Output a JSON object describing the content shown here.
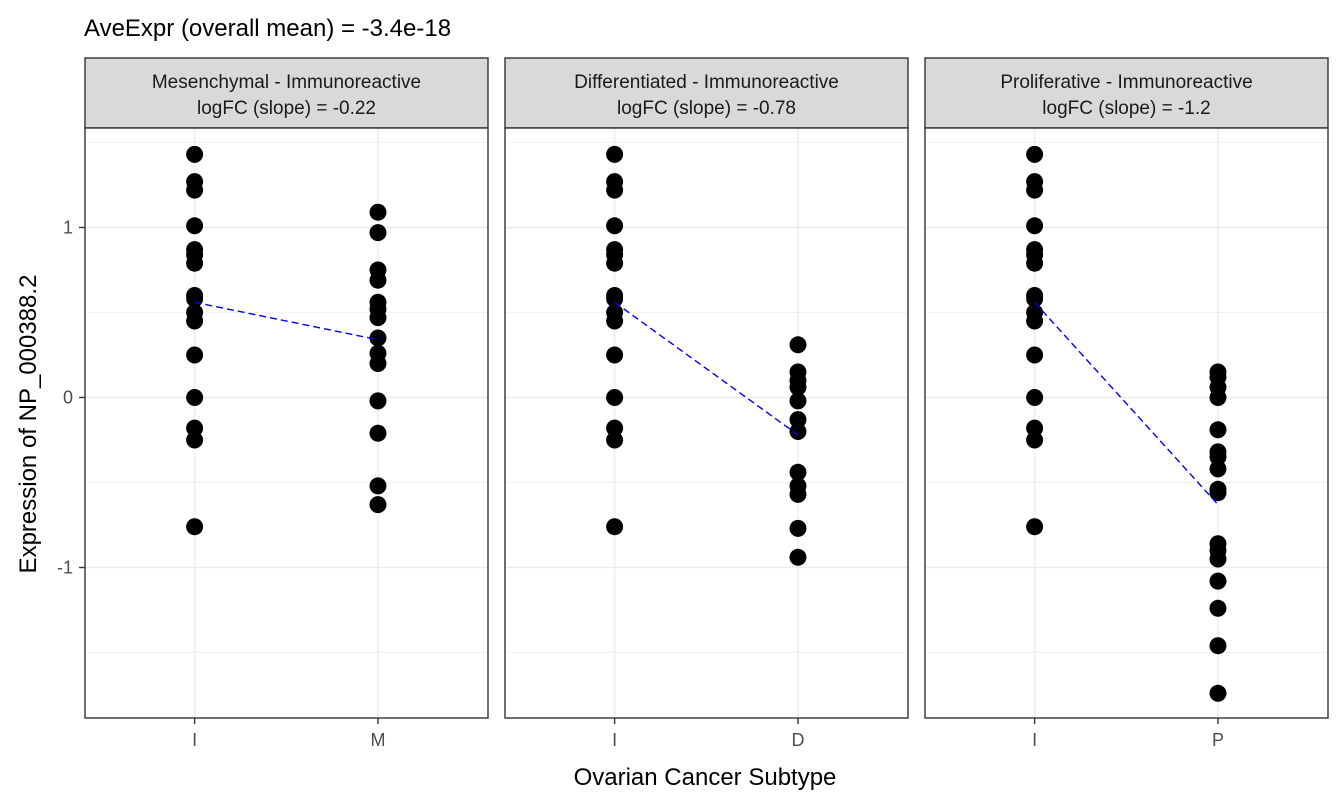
{
  "chart_data": {
    "type": "scatter",
    "title": "AveExpr (overall mean) = -3.4e-18",
    "xlabel": "Ovarian Cancer Subtype",
    "ylabel": "Expression of NP_000388.2",
    "ylim": [
      -1.9,
      1.5
    ],
    "yticks": [
      "-1",
      "0",
      "1"
    ],
    "grid": true,
    "colors": {
      "points": "#000000",
      "trend": "#0000ff",
      "strip_fill": "#d9d9d9",
      "grid": "#ebebeb"
    },
    "panels": [
      {
        "strip_line1": "Mesenchymal - Immunoreactive",
        "strip_line2": "logFC (slope) = -0.22",
        "categories": [
          "I",
          "M"
        ],
        "series": [
          {
            "values": [
              1.43,
              1.27,
              1.22,
              1.01,
              0.87,
              0.84,
              0.79,
              0.6,
              0.58,
              0.5,
              0.45,
              0.25,
              0.0,
              -0.18,
              -0.25,
              -0.76
            ]
          },
          {
            "values": [
              1.09,
              0.97,
              0.75,
              0.69,
              0.56,
              0.52,
              0.47,
              0.35,
              0.26,
              0.2,
              -0.02,
              -0.21,
              -0.52,
              -0.63
            ]
          }
        ],
        "means": [
          0.56,
          0.34
        ]
      },
      {
        "strip_line1": "Differentiated - Immunoreactive",
        "strip_line2": "logFC (slope) = -0.78",
        "categories": [
          "I",
          "D"
        ],
        "series": [
          {
            "values": [
              1.43,
              1.27,
              1.22,
              1.01,
              0.87,
              0.84,
              0.79,
              0.6,
              0.58,
              0.5,
              0.45,
              0.25,
              0.0,
              -0.18,
              -0.25,
              -0.76
            ]
          },
          {
            "values": [
              0.31,
              0.15,
              0.1,
              0.06,
              -0.02,
              -0.13,
              -0.2,
              -0.44,
              -0.52,
              -0.57,
              -0.77,
              -0.94
            ]
          }
        ],
        "means": [
          0.56,
          -0.22
        ]
      },
      {
        "strip_line1": "Proliferative - Immunoreactive",
        "strip_line2": "logFC (slope) = -1.2",
        "categories": [
          "I",
          "P"
        ],
        "series": [
          {
            "values": [
              1.43,
              1.27,
              1.22,
              1.01,
              0.87,
              0.84,
              0.79,
              0.6,
              0.58,
              0.5,
              0.45,
              0.25,
              0.0,
              -0.18,
              -0.25,
              -0.76
            ]
          },
          {
            "values": [
              0.15,
              0.12,
              0.06,
              0.0,
              -0.19,
              -0.32,
              -0.35,
              -0.42,
              -0.54,
              -0.56,
              -0.86,
              -0.9,
              -0.95,
              -1.08,
              -1.24,
              -1.46,
              -1.74
            ]
          }
        ],
        "means": [
          0.56,
          -0.63
        ]
      }
    ]
  }
}
